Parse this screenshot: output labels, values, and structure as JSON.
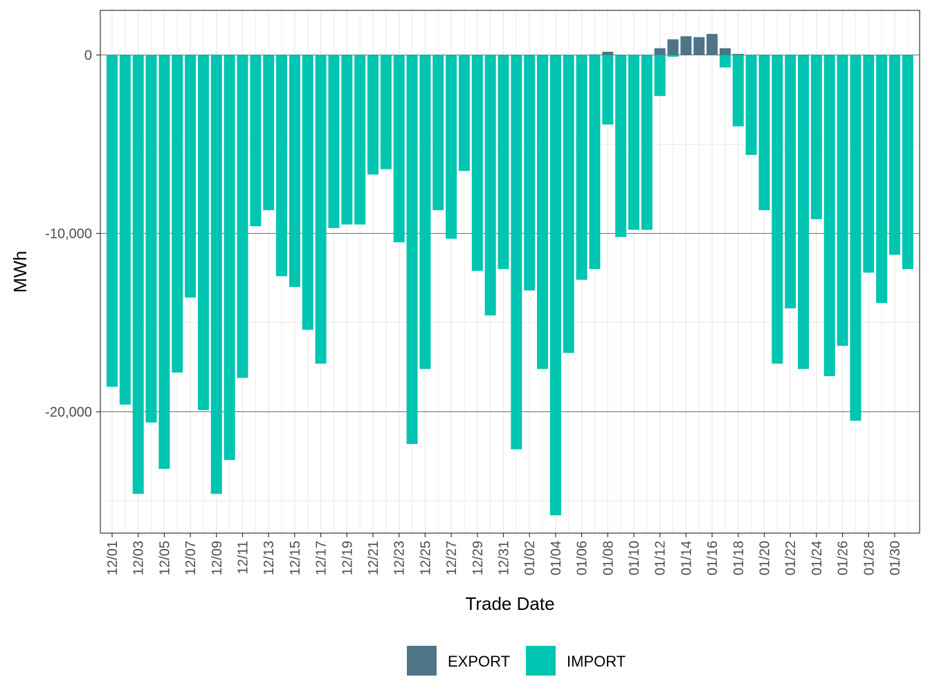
{
  "chart_data": {
    "type": "bar",
    "stacked": true,
    "title": "",
    "xlabel": "Trade Date",
    "ylabel": "MWh",
    "ylim": [
      -26800,
      2500
    ],
    "y_ticks": [
      0,
      -10000,
      -20000
    ],
    "y_tick_labels": [
      "0",
      "-10,000",
      "-20,000"
    ],
    "grid": true,
    "legend_position": "bottom",
    "x_tick_labels": [
      "12/01",
      "12/03",
      "12/05",
      "12/07",
      "12/09",
      "12/11",
      "12/13",
      "12/15",
      "12/17",
      "12/19",
      "12/21",
      "12/23",
      "12/25",
      "12/27",
      "12/29",
      "12/31",
      "01/02",
      "01/04",
      "01/06",
      "01/08",
      "01/10",
      "01/12",
      "01/14",
      "01/16",
      "01/18",
      "01/20",
      "01/22",
      "01/24",
      "01/26",
      "01/28",
      "01/30"
    ],
    "categories": [
      "12/01",
      "12/02",
      "12/03",
      "12/04",
      "12/05",
      "12/06",
      "12/07",
      "12/08",
      "12/09",
      "12/10",
      "12/11",
      "12/12",
      "12/13",
      "12/14",
      "12/15",
      "12/16",
      "12/17",
      "12/18",
      "12/19",
      "12/20",
      "12/21",
      "12/22",
      "12/23",
      "12/24",
      "12/25",
      "12/26",
      "12/27",
      "12/28",
      "12/29",
      "12/30",
      "12/31",
      "01/01",
      "01/02",
      "01/03",
      "01/04",
      "01/05",
      "01/06",
      "01/07",
      "01/08",
      "01/09",
      "01/10",
      "01/11",
      "01/12",
      "01/13",
      "01/14",
      "01/15",
      "01/16",
      "01/17",
      "01/18",
      "01/19",
      "01/20",
      "01/21",
      "01/22",
      "01/23",
      "01/24",
      "01/25",
      "01/26",
      "01/27",
      "01/28",
      "01/29",
      "01/30",
      "01/31"
    ],
    "series": [
      {
        "name": "EXPORT",
        "color": "#4f7387",
        "values": [
          0,
          0,
          0,
          0,
          0,
          0,
          0,
          0,
          0,
          0,
          0,
          0,
          0,
          0,
          0,
          0,
          0,
          0,
          0,
          0,
          0,
          0,
          0,
          0,
          0,
          0,
          0,
          0,
          0,
          0,
          0,
          0,
          0,
          0,
          0,
          0,
          0,
          30,
          180,
          0,
          0,
          0,
          380,
          880,
          1050,
          1000,
          1180,
          380,
          60,
          20,
          0,
          0,
          0,
          0,
          0,
          0,
          0,
          0,
          0,
          0,
          0,
          0
        ]
      },
      {
        "name": "IMPORT",
        "color": "#00c5b0",
        "values": [
          -18600,
          -19600,
          -24600,
          -20600,
          -23200,
          -17800,
          -13600,
          -19900,
          -24600,
          -22700,
          -18100,
          -9600,
          -8700,
          -12400,
          -13000,
          -15400,
          -17300,
          -9700,
          -9500,
          -9500,
          -6700,
          -6400,
          -10500,
          -21800,
          -17600,
          -8700,
          -10300,
          -6500,
          -12100,
          -14600,
          -12000,
          -22100,
          -13200,
          -17600,
          -25800,
          -16700,
          -12600,
          -12000,
          -3900,
          -10200,
          -9800,
          -9800,
          -2300,
          -100,
          0,
          0,
          0,
          -700,
          -4000,
          -5600,
          -8700,
          -17300,
          -14200,
          -17600,
          -9200,
          -18000,
          -16300,
          -20500,
          -12200,
          -13900,
          -11200,
          -12000
        ]
      }
    ]
  },
  "legend": {
    "items": [
      {
        "label": "EXPORT",
        "color": "#4f7387"
      },
      {
        "label": "IMPORT",
        "color": "#00c5b0"
      }
    ]
  }
}
